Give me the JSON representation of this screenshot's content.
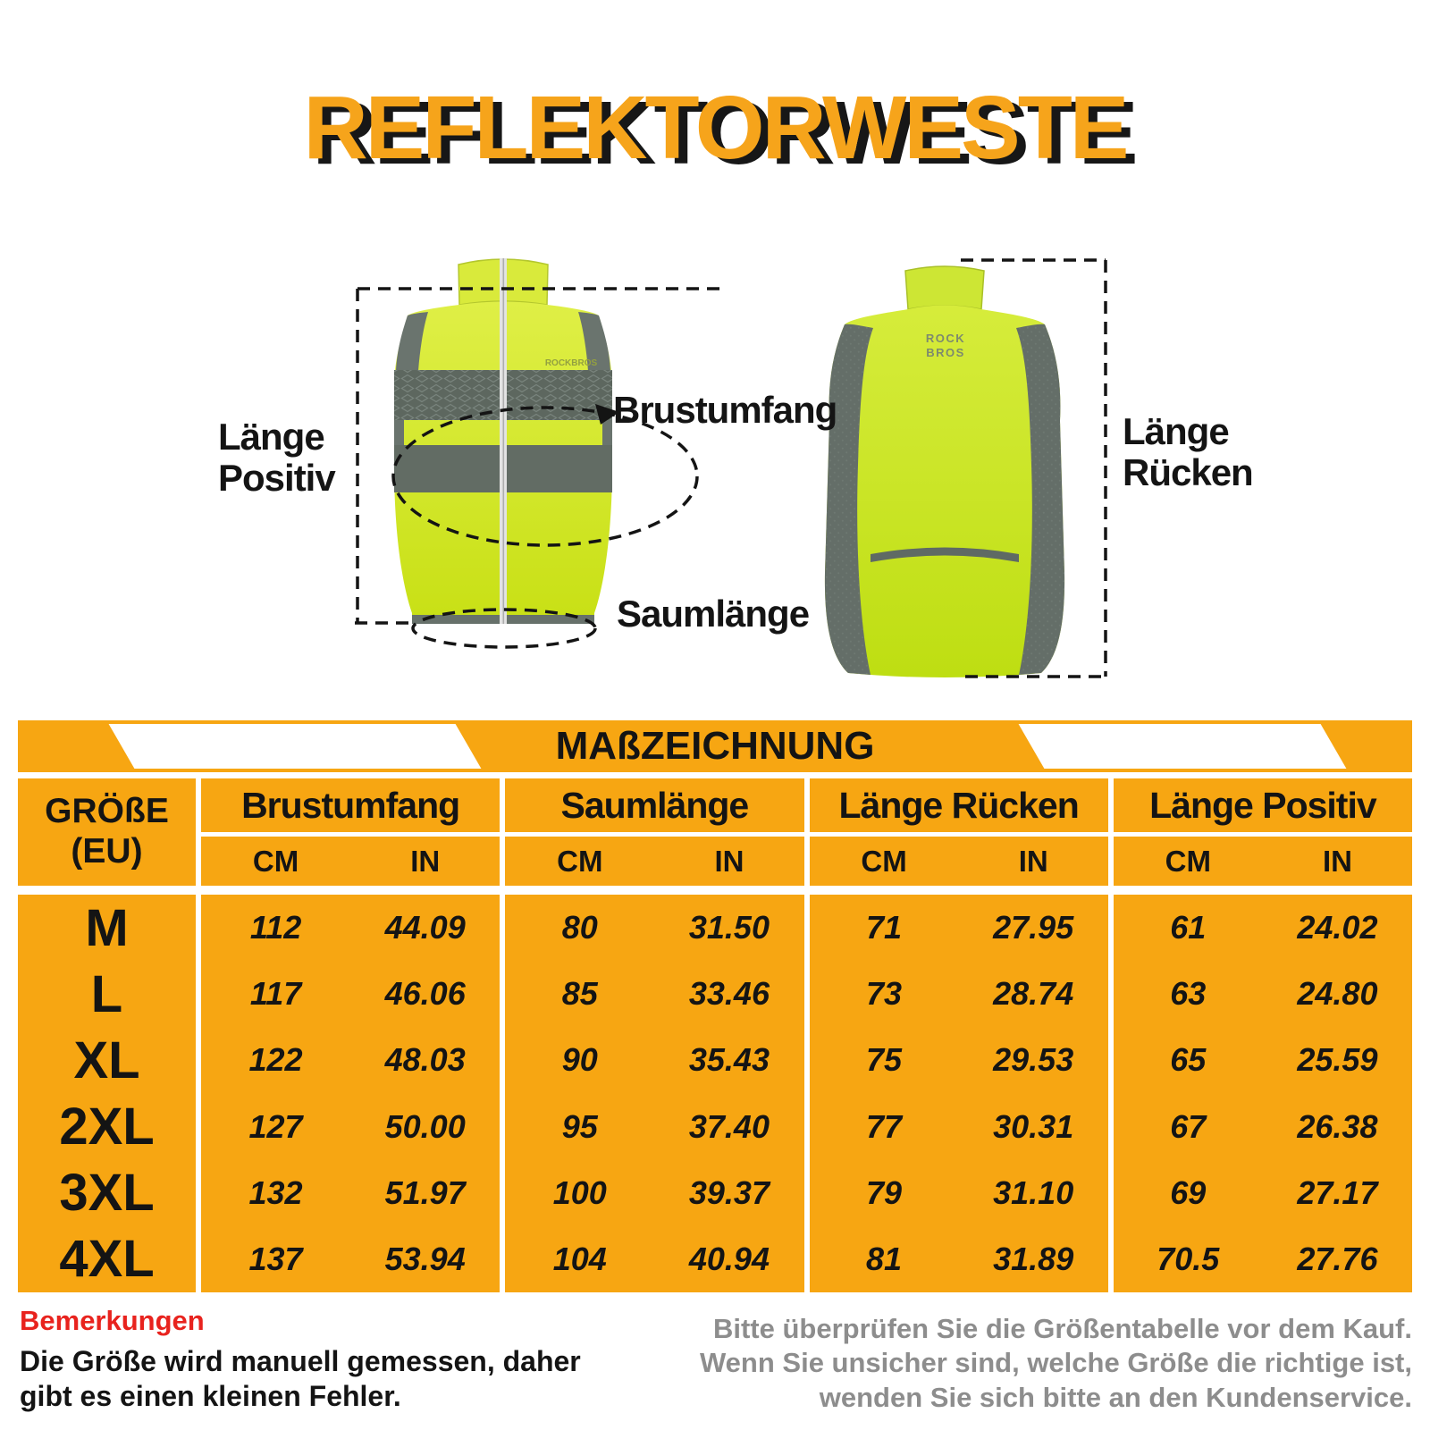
{
  "title": "REFLEKTORWESTE",
  "colors": {
    "accent_orange": "#F7A612",
    "title_orange": "#F6A41B",
    "vest_neon": "#D2E72E",
    "vest_gray": "#67716B",
    "note_red": "#E8231E",
    "note_gray": "#8D8D8D",
    "text_black": "#141414"
  },
  "diagram": {
    "brand_front": "ROCKBROS",
    "brand_back_line1": "ROCK",
    "brand_back_line2": "BROS",
    "labels": {
      "laenge_positiv_line1": "Länge",
      "laenge_positiv_line2": "Positiv",
      "brustumfang": "Brustumfang",
      "saumlaenge": "Saumlänge",
      "laenge_ruecken_line1": "Länge",
      "laenge_ruecken_line2": "Rücken"
    }
  },
  "table": {
    "banner_title": "MAßZEICHNUNG",
    "size_header_line1": "GRÖßE",
    "size_header_line2": "(EU)",
    "unit_cm": "CM",
    "unit_in": "IN",
    "groups": [
      "Brustumfang",
      "Saumlänge",
      "Länge Rücken",
      "Länge Positiv"
    ],
    "rows": [
      {
        "size": "M",
        "values": [
          "112",
          "44.09",
          "80",
          "31.50",
          "71",
          "27.95",
          "61",
          "24.02"
        ]
      },
      {
        "size": "L",
        "values": [
          "117",
          "46.06",
          "85",
          "33.46",
          "73",
          "28.74",
          "63",
          "24.80"
        ]
      },
      {
        "size": "XL",
        "values": [
          "122",
          "48.03",
          "90",
          "35.43",
          "75",
          "29.53",
          "65",
          "25.59"
        ]
      },
      {
        "size": "2XL",
        "values": [
          "127",
          "50.00",
          "95",
          "37.40",
          "77",
          "30.31",
          "67",
          "26.38"
        ]
      },
      {
        "size": "3XL",
        "values": [
          "132",
          "51.97",
          "100",
          "39.37",
          "79",
          "31.10",
          "69",
          "27.17"
        ]
      },
      {
        "size": "4XL",
        "values": [
          "137",
          "53.94",
          "104",
          "40.94",
          "81",
          "31.89",
          "70.5",
          "27.76"
        ]
      }
    ]
  },
  "notes": {
    "heading": "Bemerkungen",
    "line1": "Die Größe wird manuell gemessen, daher",
    "line2": "gibt es einen kleinen Fehler.",
    "right_line1": "Bitte überprüfen Sie die Größentabelle vor dem Kauf.",
    "right_line2": "Wenn Sie unsicher sind, welche Größe die richtige ist,",
    "right_line3": "wenden Sie sich bitte an den Kundenservice."
  }
}
